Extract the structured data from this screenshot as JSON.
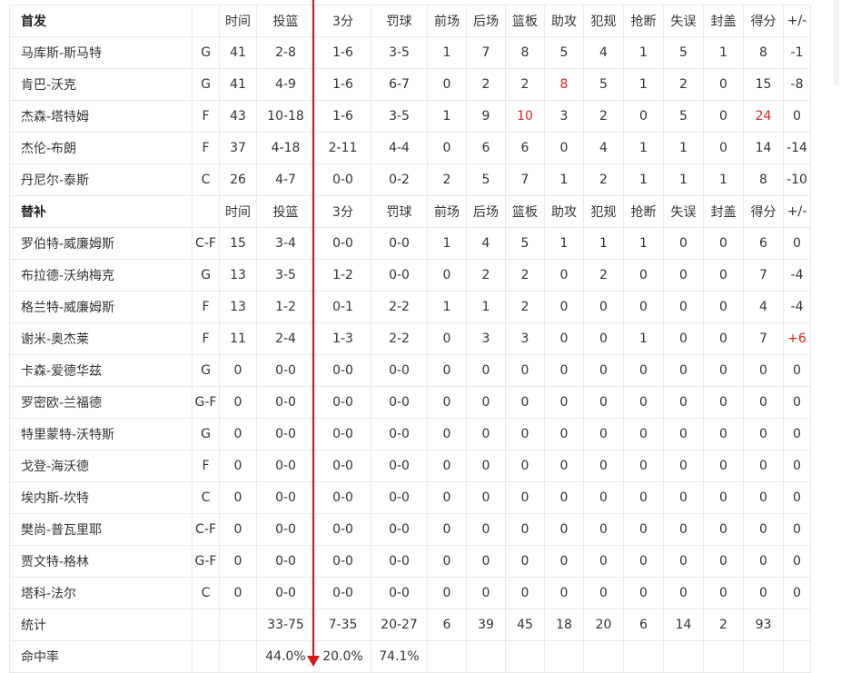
{
  "colors": {
    "highlight": "#e0201c",
    "arrow": "#cc1a1a",
    "border": "#e9e9e9"
  },
  "columns": [
    "时间",
    "投篮",
    "3分",
    "罚球",
    "前场",
    "后场",
    "篮板",
    "助攻",
    "犯规",
    "抢断",
    "失误",
    "封盖",
    "得分",
    "+/-"
  ],
  "starters": {
    "title": "首发",
    "players": [
      {
        "name": "马库斯-斯马特",
        "pos": "G",
        "stats": [
          "41",
          "2-8",
          "1-6",
          "3-5",
          "1",
          "7",
          "8",
          "5",
          "4",
          "1",
          "5",
          "1",
          "8",
          "-1"
        ],
        "highlights": []
      },
      {
        "name": "肯巴-沃克",
        "pos": "G",
        "stats": [
          "41",
          "4-9",
          "1-6",
          "6-7",
          "0",
          "2",
          "2",
          "8",
          "5",
          "1",
          "2",
          "0",
          "15",
          "-8"
        ],
        "highlights": [
          7
        ]
      },
      {
        "name": "杰森-塔特姆",
        "pos": "F",
        "stats": [
          "43",
          "10-18",
          "1-6",
          "3-5",
          "1",
          "9",
          "10",
          "3",
          "2",
          "0",
          "5",
          "0",
          "24",
          "0"
        ],
        "highlights": [
          6,
          12
        ]
      },
      {
        "name": "杰伦-布朗",
        "pos": "F",
        "stats": [
          "37",
          "4-18",
          "2-11",
          "4-4",
          "0",
          "6",
          "6",
          "0",
          "4",
          "1",
          "1",
          "0",
          "14",
          "-14"
        ],
        "highlights": []
      },
      {
        "name": "丹尼尔-泰斯",
        "pos": "C",
        "stats": [
          "26",
          "4-7",
          "0-0",
          "0-2",
          "2",
          "5",
          "7",
          "1",
          "2",
          "1",
          "1",
          "1",
          "8",
          "-10"
        ],
        "highlights": []
      }
    ]
  },
  "bench": {
    "title": "替补",
    "players": [
      {
        "name": "罗伯特-威廉姆斯",
        "pos": "C-F",
        "stats": [
          "15",
          "3-4",
          "0-0",
          "0-0",
          "1",
          "4",
          "5",
          "1",
          "1",
          "1",
          "0",
          "0",
          "6",
          "0"
        ],
        "highlights": []
      },
      {
        "name": "布拉德-沃纳梅克",
        "pos": "G",
        "stats": [
          "13",
          "3-5",
          "1-2",
          "0-0",
          "0",
          "2",
          "2",
          "0",
          "2",
          "0",
          "0",
          "0",
          "7",
          "-4"
        ],
        "highlights": []
      },
      {
        "name": "格兰特-威廉姆斯",
        "pos": "F",
        "stats": [
          "13",
          "1-2",
          "0-1",
          "2-2",
          "1",
          "1",
          "2",
          "0",
          "0",
          "0",
          "0",
          "0",
          "4",
          "-4"
        ],
        "highlights": []
      },
      {
        "name": "谢米-奥杰莱",
        "pos": "F",
        "stats": [
          "11",
          "2-4",
          "1-3",
          "2-2",
          "0",
          "3",
          "3",
          "0",
          "0",
          "1",
          "0",
          "0",
          "7",
          "+6"
        ],
        "highlights": [
          13
        ]
      },
      {
        "name": "卡森-爱德华兹",
        "pos": "G",
        "stats": [
          "0",
          "0-0",
          "0-0",
          "0-0",
          "0",
          "0",
          "0",
          "0",
          "0",
          "0",
          "0",
          "0",
          "0",
          "0"
        ],
        "highlights": []
      },
      {
        "name": "罗密欧-兰福德",
        "pos": "G-F",
        "stats": [
          "0",
          "0-0",
          "0-0",
          "0-0",
          "0",
          "0",
          "0",
          "0",
          "0",
          "0",
          "0",
          "0",
          "0",
          "0"
        ],
        "highlights": []
      },
      {
        "name": "特里蒙特-沃特斯",
        "pos": "G",
        "stats": [
          "0",
          "0-0",
          "0-0",
          "0-0",
          "0",
          "0",
          "0",
          "0",
          "0",
          "0",
          "0",
          "0",
          "0",
          "0"
        ],
        "highlights": []
      },
      {
        "name": "戈登-海沃德",
        "pos": "F",
        "stats": [
          "0",
          "0-0",
          "0-0",
          "0-0",
          "0",
          "0",
          "0",
          "0",
          "0",
          "0",
          "0",
          "0",
          "0",
          "0"
        ],
        "highlights": []
      },
      {
        "name": "埃内斯-坎特",
        "pos": "C",
        "stats": [
          "0",
          "0-0",
          "0-0",
          "0-0",
          "0",
          "0",
          "0",
          "0",
          "0",
          "0",
          "0",
          "0",
          "0",
          "0"
        ],
        "highlights": []
      },
      {
        "name": "樊尚-普瓦里耶",
        "pos": "C-F",
        "stats": [
          "0",
          "0-0",
          "0-0",
          "0-0",
          "0",
          "0",
          "0",
          "0",
          "0",
          "0",
          "0",
          "0",
          "0",
          "0"
        ],
        "highlights": []
      },
      {
        "name": "贾文特-格林",
        "pos": "G-F",
        "stats": [
          "0",
          "0-0",
          "0-0",
          "0-0",
          "0",
          "0",
          "0",
          "0",
          "0",
          "0",
          "0",
          "0",
          "0",
          "0"
        ],
        "highlights": []
      },
      {
        "name": "塔科-法尔",
        "pos": "C",
        "stats": [
          "0",
          "0-0",
          "0-0",
          "0-0",
          "0",
          "0",
          "0",
          "0",
          "0",
          "0",
          "0",
          "0",
          "0",
          "0"
        ],
        "highlights": []
      }
    ]
  },
  "totals": {
    "label": "统计",
    "pos": "",
    "stats": [
      "",
      "33-75",
      "7-35",
      "20-27",
      "6",
      "39",
      "45",
      "18",
      "20",
      "6",
      "14",
      "2",
      "93",
      ""
    ]
  },
  "percentages": {
    "label": "命中率",
    "pos": "",
    "stats": [
      "",
      "44.0%",
      "20.0%",
      "74.1%",
      "",
      "",
      "",
      "",
      "",
      "",
      "",
      "",
      "",
      ""
    ]
  }
}
